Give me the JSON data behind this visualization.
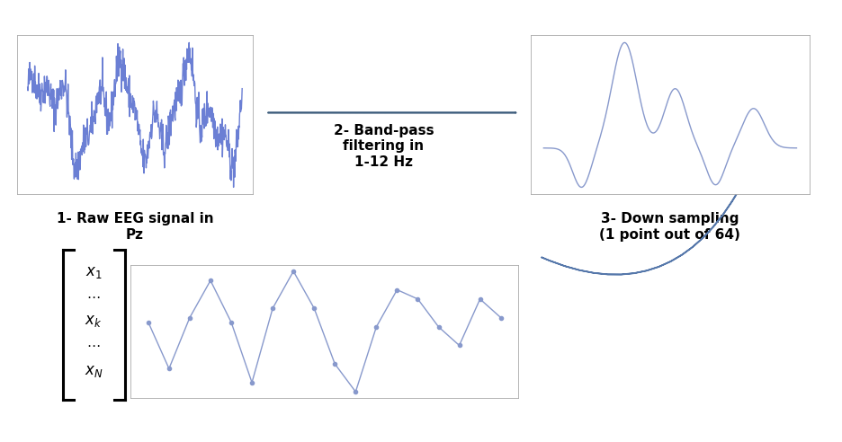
{
  "bg_color": "#ffffff",
  "signal_color": "#6b7fd4",
  "filtered_color": "#8899cc",
  "text_color": "#000000",
  "label1": "1- Raw EEG signal in\nPz",
  "label2": "2- Band-pass\nfiltering in\n1-12 Hz",
  "label3": "3- Down sampling\n(1 point out of 64)",
  "big_arrow_fc": "#5a7a9a",
  "big_arrow_ec": "#3a5a7a",
  "return_arrow_fc": "#8899bb",
  "return_arrow_ec": "#5577aa",
  "diag_arrow_fc": "#1a3a6a",
  "diag_arrow_ec": "#1a3a6a"
}
